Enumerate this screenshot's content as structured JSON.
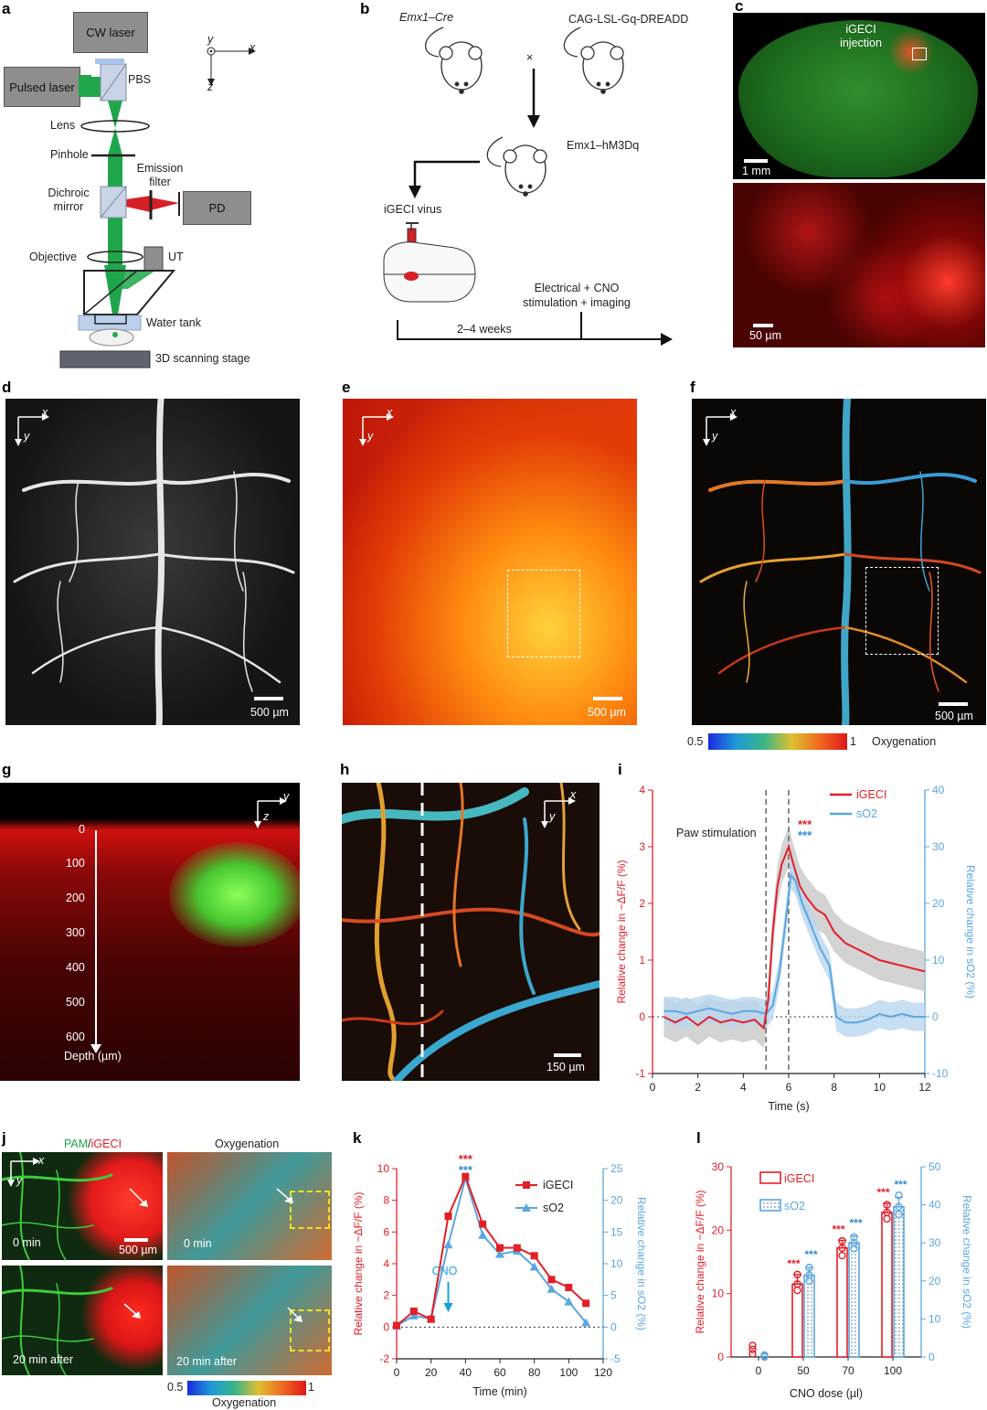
{
  "panels": {
    "a": "a",
    "b": "b",
    "c": "c",
    "d": "d",
    "e": "e",
    "f": "f",
    "g": "g",
    "h": "h",
    "i": "i",
    "j": "j",
    "k": "k",
    "l": "l"
  },
  "panel_a": {
    "cw_laser": "CW laser",
    "pulsed_laser": "Pulsed laser",
    "pbs": "PBS",
    "lens": "Lens",
    "pinhole": "Pinhole",
    "emission_filter": "Emission filter",
    "dichroic_mirror": "Dichroic mirror",
    "pd": "PD",
    "objective": "Objective",
    "ut": "UT",
    "water_tank": "Water tank",
    "stage": "3D scanning stage",
    "axis_x": "x",
    "axis_y": "y",
    "axis_z": "z"
  },
  "panel_b": {
    "mouse1": "Emx1–Cre",
    "mouse2": "CAG-LSL-Gq-DREADD",
    "cross": "×",
    "offspring": "Emx1–hM3Dq",
    "virus": "iGECI virus",
    "stim": "Electrical + CNO stimulation + imaging",
    "duration": "2–4 weeks"
  },
  "panel_c": {
    "injection": "iGECI injection",
    "scale1": "1 mm",
    "scale2": "50 µm"
  },
  "panel_d": {
    "scale": "500 µm",
    "ax_x": "x",
    "ax_y": "y"
  },
  "panel_e": {
    "scale": "500 µm",
    "ax_x": "x",
    "ax_y": "y"
  },
  "panel_f": {
    "scale": "500 µm",
    "ax_x": "x",
    "ax_y": "y",
    "cb_min": "0.5",
    "cb_max": "1",
    "cb_label": "Oxygenation"
  },
  "panel_g": {
    "ax_y": "y",
    "ax_z": "z",
    "depth_ticks": [
      "0",
      "100",
      "200",
      "300",
      "400",
      "500",
      "600"
    ],
    "depth_label": "Depth (µm)"
  },
  "panel_h": {
    "scale": "150 µm",
    "ax_x": "x",
    "ax_y": "y"
  },
  "panel_j": {
    "title_left_a": "PAM",
    "title_left_sep": "/",
    "title_left_b": "iGECI",
    "title_right": "Oxygenation",
    "t0": "0 min",
    "t1": "20 min after",
    "scale": "500 µm",
    "ax_x": "x",
    "ax_y": "y",
    "cb_min": "0.5",
    "cb_max": "1",
    "cb_label": "Oxygenation"
  },
  "colors": {
    "igeci": "#e41e26",
    "so2": "#5aa7e0",
    "shade_igeci": "#c8c8c8",
    "shade_so2": "#b9d6f0"
  },
  "chart_data": [
    {
      "id": "i",
      "type": "line",
      "xlabel": "Time (s)",
      "ylabel_left": "Relative change in −ΔF/F (%)",
      "ylabel_right": "Relative change in sO2 (%)",
      "xlim": [
        0,
        12
      ],
      "ylim_left": [
        -1,
        4
      ],
      "ylim_right": [
        -10,
        40
      ],
      "xticks": [
        0,
        2,
        4,
        6,
        8,
        10,
        12
      ],
      "yticks_left": [
        -1,
        0,
        1,
        2,
        3,
        4
      ],
      "yticks_right": [
        -10,
        0,
        10,
        20,
        30,
        40
      ],
      "annotation": "Paw stimulation",
      "stars_igeci": "***",
      "stars_so2": "***",
      "stim_lines": [
        5,
        6
      ],
      "series": [
        {
          "name": "iGECI",
          "axis": "left",
          "x": [
            0.5,
            1,
            1.5,
            2,
            2.5,
            3,
            3.5,
            4,
            4.5,
            4.9,
            5.1,
            5.3,
            5.5,
            5.7,
            5.9,
            6.0,
            6.2,
            6.5,
            6.8,
            7.2,
            7.6,
            8.0,
            8.5,
            9,
            9.5,
            10,
            10.5,
            11,
            11.5,
            12
          ],
          "y": [
            0.0,
            -0.1,
            0.0,
            -0.15,
            0.0,
            -0.1,
            -0.05,
            -0.1,
            -0.05,
            -0.2,
            0.3,
            1.5,
            2.3,
            2.7,
            2.9,
            3.0,
            2.7,
            2.3,
            2.1,
            1.9,
            1.8,
            1.5,
            1.3,
            1.2,
            1.1,
            1.0,
            0.95,
            0.9,
            0.85,
            0.8
          ]
        },
        {
          "name": "sO2",
          "axis": "right",
          "x": [
            0.5,
            1,
            1.5,
            2,
            2.5,
            3,
            3.5,
            4,
            4.5,
            5,
            5.3,
            5.6,
            5.9,
            6.1,
            6.3,
            6.6,
            7.0,
            7.4,
            7.8,
            8.1,
            8.5,
            9,
            9.5,
            10,
            10.5,
            11,
            11.5,
            12
          ],
          "y": [
            1,
            1,
            0.5,
            1,
            1.5,
            1,
            0.5,
            1,
            1,
            0.5,
            2,
            8,
            18,
            25,
            24,
            20,
            16,
            12,
            9,
            0,
            -1,
            -1,
            -0.5,
            0.5,
            0,
            0.5,
            0,
            0
          ]
        }
      ]
    },
    {
      "id": "k",
      "type": "line",
      "xlabel": "Time (min)",
      "ylabel_left": "Relative change in −ΔF/F (%)",
      "ylabel_right": "Relative change in sO2 (%)",
      "xlim": [
        0,
        120
      ],
      "ylim_left": [
        -2,
        10
      ],
      "ylim_right": [
        -5,
        25
      ],
      "xticks": [
        0,
        20,
        40,
        60,
        80,
        100,
        120
      ],
      "yticks_left": [
        -2,
        0,
        2,
        4,
        6,
        8,
        10
      ],
      "yticks_right": [
        -5,
        0,
        5,
        10,
        15,
        20,
        25
      ],
      "annotation": "CNO",
      "stars_igeci": "***",
      "stars_so2": "***",
      "series": [
        {
          "name": "iGECI",
          "axis": "left",
          "x": [
            0,
            10,
            20,
            30,
            40,
            50,
            60,
            70,
            80,
            90,
            100,
            110
          ],
          "y": [
            0.1,
            1.0,
            0.5,
            7.0,
            9.5,
            6.5,
            5.0,
            5.0,
            4.5,
            3.0,
            2.5,
            1.5
          ]
        },
        {
          "name": "sO2",
          "axis": "right",
          "x": [
            0,
            10,
            20,
            30,
            40,
            50,
            60,
            70,
            80,
            90,
            100,
            110
          ],
          "y": [
            0.2,
            1.8,
            1.3,
            13.0,
            23.5,
            14.5,
            11.5,
            12.0,
            9.5,
            6.0,
            4.0,
            0.7
          ]
        }
      ]
    },
    {
      "id": "l",
      "type": "bar",
      "xlabel": "CNO dose (µl)",
      "ylabel_left": "Relative change in −ΔF/F (%)",
      "ylabel_right": "Relative change in sO2 (%)",
      "categories": [
        "0",
        "50",
        "70",
        "100"
      ],
      "ylim_left": [
        0,
        30
      ],
      "ylim_right": [
        0,
        50
      ],
      "yticks_left": [
        0,
        10,
        20,
        30
      ],
      "yticks_right": [
        0,
        10,
        20,
        30,
        40,
        50
      ],
      "stars": [
        "",
        "***",
        "***",
        "***"
      ],
      "series": [
        {
          "name": "iGECI",
          "axis": "left",
          "values": [
            1.2,
            11.5,
            17.2,
            22.8
          ],
          "errors": [
            0.6,
            1.5,
            1.2,
            1.4
          ],
          "points": [
            [
              0.5,
              1.2,
              1.8
            ],
            [
              10.5,
              11.5,
              13.0
            ],
            [
              16.0,
              17.2,
              18.3
            ],
            [
              21.8,
              22.8,
              24.0
            ]
          ]
        },
        {
          "name": "sO2",
          "axis": "right",
          "values": [
            0.2,
            21.5,
            30.0,
            39.5
          ],
          "errors": [
            0.3,
            2.0,
            1.8,
            2.5
          ],
          "points": [
            [
              0,
              0.2,
              0.5
            ],
            [
              20.0,
              21.5,
              23.5
            ],
            [
              28.5,
              30.0,
              31.5
            ],
            [
              37.5,
              39.5,
              42.5
            ]
          ]
        }
      ]
    }
  ]
}
